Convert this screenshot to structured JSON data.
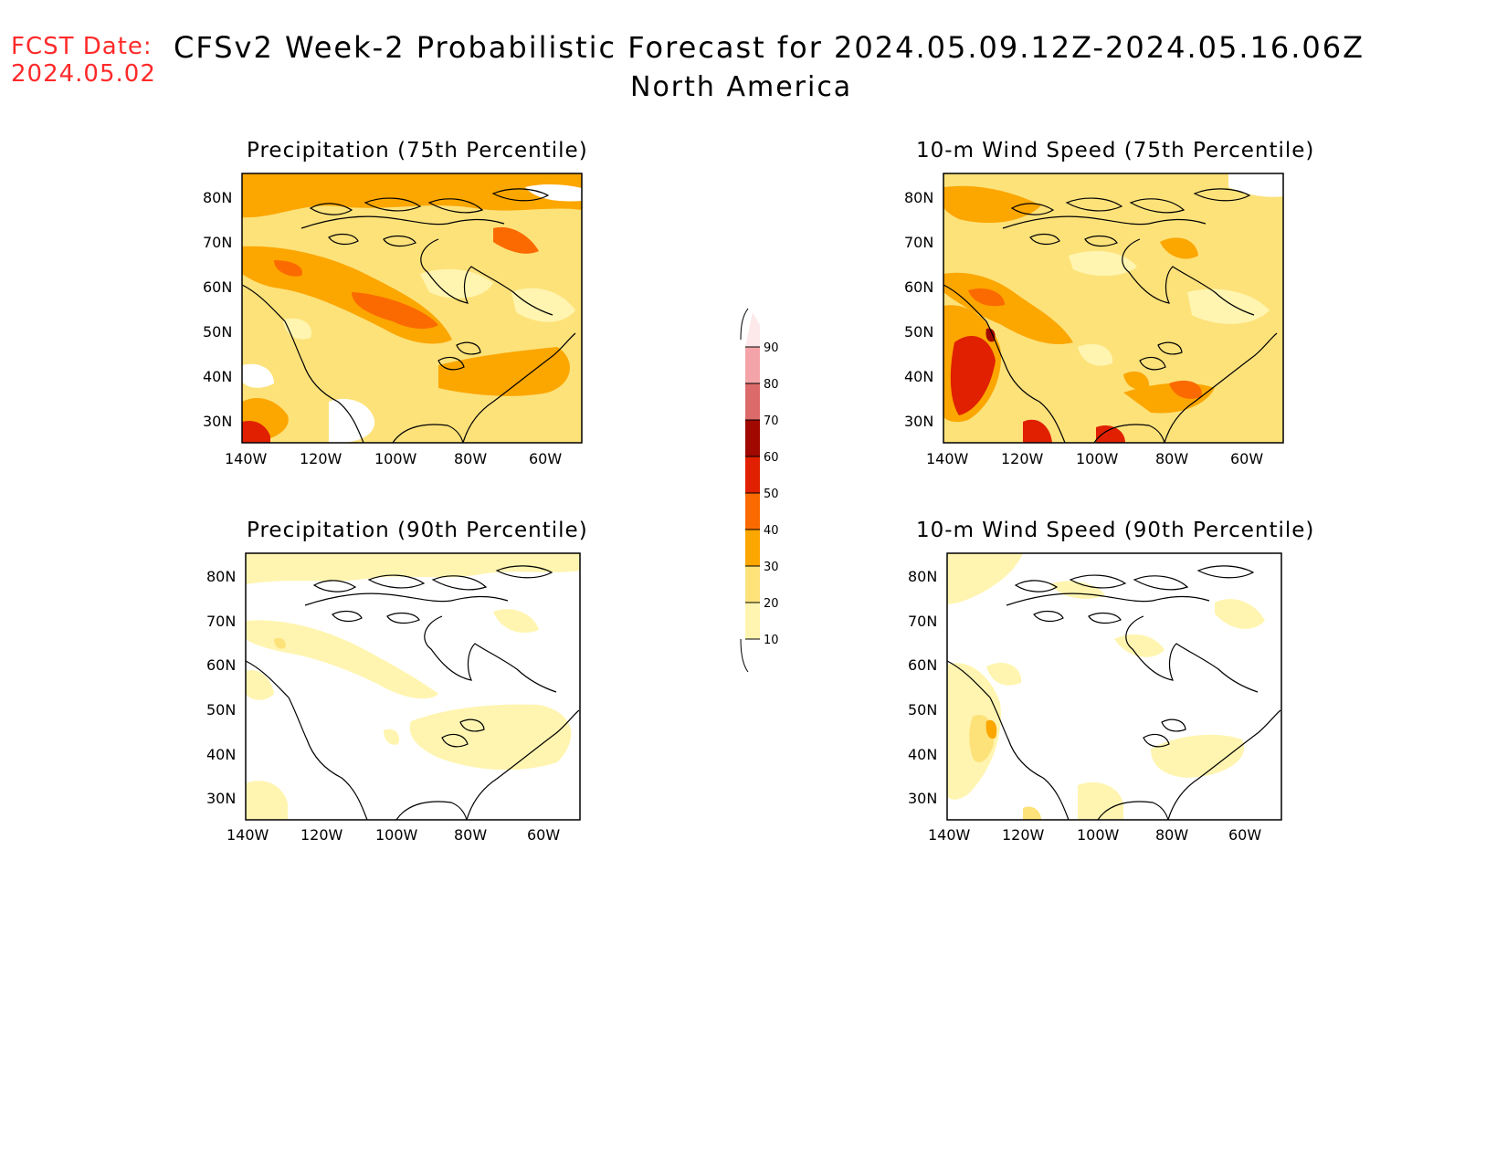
{
  "fcst": {
    "label": "FCST Date:",
    "date": "2024.05.02"
  },
  "header": {
    "title": "CFSv2 Week-2 Probabilistic Forecast for 2024.05.09.12Z-2024.05.16.06Z",
    "subtitle": "North America"
  },
  "axes": {
    "lat_labels": [
      "80N",
      "70N",
      "60N",
      "50N",
      "40N",
      "30N"
    ],
    "lon_labels": [
      "140W",
      "120W",
      "100W",
      "80W",
      "60W"
    ]
  },
  "panels": [
    {
      "id": "precip75",
      "title": "Precipitation (75th Percentile)"
    },
    {
      "id": "wind75",
      "title": "10-m Wind Speed (75th Percentile)"
    },
    {
      "id": "precip90",
      "title": "Precipitation (90th Percentile)"
    },
    {
      "id": "wind90",
      "title": "10-m Wind Speed (90th Percentile)"
    }
  ],
  "colorbar": {
    "levels": [
      "10",
      "20",
      "30",
      "40",
      "50",
      "60",
      "70",
      "80",
      "90"
    ],
    "colors": [
      "#fff5b0",
      "#fde27a",
      "#fca600",
      "#fb6a00",
      "#e02000",
      "#a00800",
      "#dd6a6a",
      "#f4a4a8",
      "#fde8ea"
    ]
  }
}
